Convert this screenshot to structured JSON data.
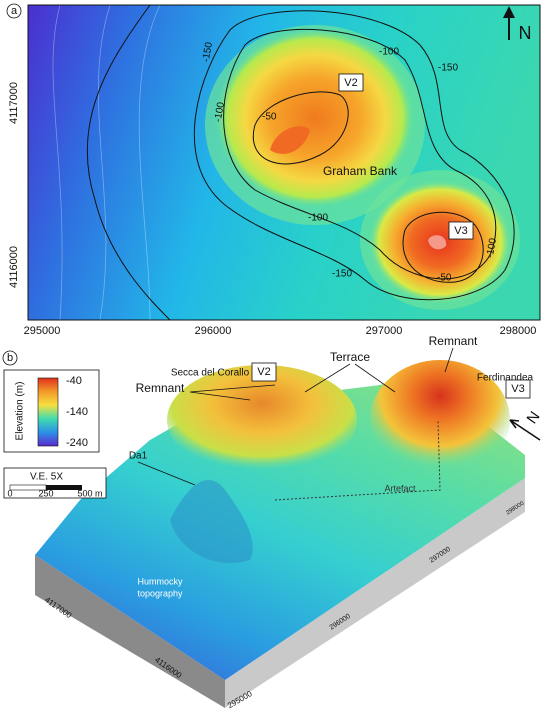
{
  "map_a": {
    "panel": "a",
    "north": "N",
    "contour_labels": [
      "-100",
      "-150",
      "-150",
      "-100",
      "-50",
      "-100",
      "-150",
      "-50",
      "-100"
    ],
    "vents": [
      "V2",
      "V3"
    ],
    "feature": "Graham Bank",
    "x_ticks": [
      "295000",
      "296000",
      "297000",
      "298000"
    ],
    "y_ticks": [
      "4117000",
      "4116000"
    ]
  },
  "view_b": {
    "panel": "b",
    "north": "N",
    "labels": {
      "secca": "Secca del Corallo",
      "v2": "V2",
      "terrace": "Terrace",
      "remnant_v3": "Remnant",
      "remnant_v2": "Remnant",
      "ferdinandea": "Ferdinandea",
      "v3": "V3",
      "da1": "Da1",
      "artefact": "Artefact",
      "hummocky_1": "Hummocky",
      "hummocky_2": "topography"
    },
    "legend": {
      "title": "Elevation (m)",
      "ticks": [
        "-40",
        "-140",
        "-240"
      ]
    },
    "scale": {
      "title": "V.E. 5X",
      "ticks": [
        "0",
        "250",
        "500 m"
      ]
    },
    "axis_labels": [
      "4117000",
      "4116000",
      "295000",
      "296000",
      "297000",
      "298000"
    ]
  }
}
